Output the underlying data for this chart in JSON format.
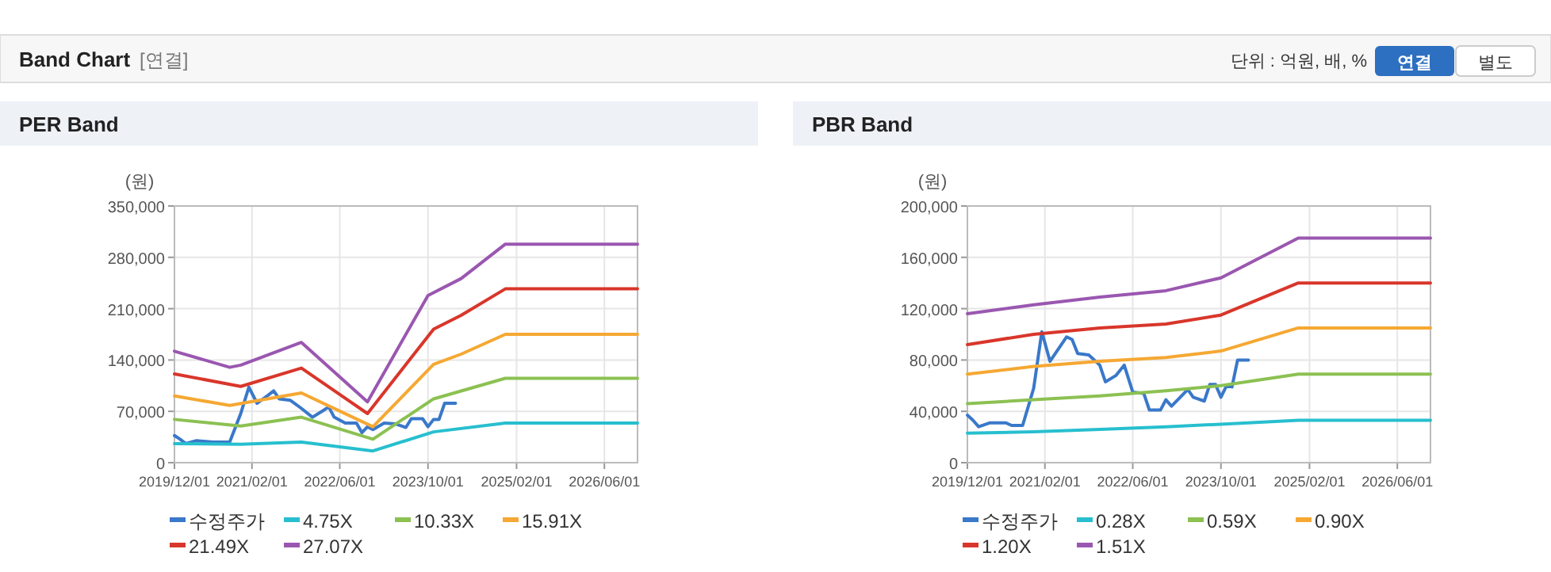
{
  "chart_data": [
    {
      "type": "line",
      "title": "PER Band",
      "ylabel": "(원)",
      "annotations": [
        "Band Chart",
        "[연결]",
        "단위 : 억원, 배, %",
        "연결",
        "별도"
      ],
      "xlim": [
        "2019-12-01",
        "2026-12-01"
      ],
      "xticks": [
        {
          "value": "2019-12-01",
          "label": "2019/12/01"
        },
        {
          "value": "2021-02-01",
          "label": "2021/02/01"
        },
        {
          "value": "2022-06-01",
          "label": "2022/06/01"
        },
        {
          "value": "2023-10-01",
          "label": "2023/10/01"
        },
        {
          "value": "2025-02-01",
          "label": "2025/02/01"
        },
        {
          "value": "2026-06-01",
          "label": "2026/06/01"
        }
      ],
      "ylim": [
        0,
        350000
      ],
      "yticks": [
        0,
        {
          "value": 70000,
          "label": "70,000"
        },
        {
          "value": 140000,
          "label": "140,000"
        },
        {
          "value": 210000,
          "label": "210,000"
        },
        {
          "value": 280000,
          "label": "280,000"
        },
        {
          "value": 350000,
          "label": "350,000"
        }
      ],
      "grid": true,
      "legend": "bottom",
      "series": [
        {
          "name": "수정주가",
          "color": "#3a78c9",
          "x": [
            "2019-12-01",
            "2020-01-01",
            "2020-02-01",
            "2020-04-01",
            "2020-07-01",
            "2020-10-01",
            "2020-12-01",
            "2021-01-15",
            "2021-03-01",
            "2021-05-01",
            "2021-06-01",
            "2021-07-01",
            "2021-09-01",
            "2021-11-01",
            "2022-01-01",
            "2022-03-01",
            "2022-04-01",
            "2022-05-01",
            "2022-07-01",
            "2022-09-01",
            "2022-10-01",
            "2022-11-01",
            "2022-12-01",
            "2023-02-01",
            "2023-04-01",
            "2023-06-01",
            "2023-07-01",
            "2023-09-01",
            "2023-10-01",
            "2023-11-01",
            "2023-12-01",
            "2024-01-01",
            "2024-03-01"
          ],
          "values": [
            37000,
            32000,
            26000,
            30000,
            28000,
            28000,
            67000,
            103000,
            81000,
            92000,
            98000,
            87000,
            85000,
            74000,
            62000,
            71000,
            76000,
            62000,
            54000,
            54000,
            41000,
            49000,
            45000,
            54000,
            53000,
            48000,
            60000,
            60000,
            49000,
            59000,
            59000,
            81000,
            81000
          ]
        },
        {
          "name": "4.75X",
          "color": "#27bfcf",
          "x": [
            "2019-12-01",
            "2020-12-01",
            "2021-11-01",
            "2022-12-01",
            "2023-11-01",
            "2024-12-01",
            "2026-12-01"
          ],
          "values": [
            26000,
            25000,
            28000,
            16000,
            42000,
            54000,
            54000
          ]
        },
        {
          "name": "10.33X",
          "color": "#8cc152",
          "x": [
            "2019-12-01",
            "2020-12-01",
            "2021-11-01",
            "2022-12-01",
            "2023-11-01",
            "2024-12-01",
            "2026-12-01"
          ],
          "values": [
            59000,
            50000,
            62000,
            32000,
            87000,
            115000,
            115000
          ]
        },
        {
          "name": "15.91X",
          "color": "#f5a833",
          "x": [
            "2019-12-01",
            "2020-10-01",
            "2021-11-01",
            "2022-12-01",
            "2023-11-01",
            "2024-04-01",
            "2024-12-01",
            "2026-12-01"
          ],
          "values": [
            91000,
            78000,
            95000,
            49000,
            134000,
            148000,
            175000,
            175000
          ]
        },
        {
          "name": "21.49X",
          "color": "#d9362b",
          "x": [
            "2019-12-01",
            "2020-12-01",
            "2021-11-01",
            "2022-11-01",
            "2023-11-01",
            "2024-04-01",
            "2024-12-01",
            "2026-12-01"
          ],
          "values": [
            121000,
            104000,
            129000,
            67000,
            182000,
            201000,
            237000,
            237000
          ]
        },
        {
          "name": "27.07X",
          "color": "#9a57b0",
          "x": [
            "2019-12-01",
            "2020-10-01",
            "2020-12-01",
            "2021-11-01",
            "2022-11-01",
            "2023-10-01",
            "2024-04-01",
            "2024-12-01",
            "2026-12-01"
          ],
          "values": [
            152000,
            130000,
            133000,
            164000,
            83000,
            228000,
            251000,
            298000,
            298000
          ]
        }
      ]
    },
    {
      "type": "line",
      "title": "PBR Band",
      "ylabel": "(원)",
      "xlim": [
        "2019-12-01",
        "2026-12-01"
      ],
      "xticks": [
        {
          "value": "2019-12-01",
          "label": "2019/12/01"
        },
        {
          "value": "2021-02-01",
          "label": "2021/02/01"
        },
        {
          "value": "2022-06-01",
          "label": "2022/06/01"
        },
        {
          "value": "2023-10-01",
          "label": "2023/10/01"
        },
        {
          "value": "2025-02-01",
          "label": "2025/02/01"
        },
        {
          "value": "2026-06-01",
          "label": "2026/06/01"
        }
      ],
      "ylim": [
        0,
        200000
      ],
      "yticks": [
        0,
        {
          "value": 40000,
          "label": "40,000"
        },
        {
          "value": 80000,
          "label": "80,000"
        },
        {
          "value": 120000,
          "label": "120,000"
        },
        {
          "value": 160000,
          "label": "160,000"
        },
        {
          "value": 200000,
          "label": "200,000"
        }
      ],
      "grid": true,
      "legend": "bottom",
      "series": [
        {
          "name": "수정주가",
          "color": "#3a78c9",
          "x": [
            "2019-12-01",
            "2020-01-01",
            "2020-02-01",
            "2020-04-01",
            "2020-07-01",
            "2020-08-01",
            "2020-10-01",
            "2020-12-01",
            "2021-01-15",
            "2021-03-01",
            "2021-06-01",
            "2021-07-01",
            "2021-08-01",
            "2021-10-01",
            "2021-12-01",
            "2022-01-01",
            "2022-03-01",
            "2022-04-15",
            "2022-06-01",
            "2022-08-01",
            "2022-09-01",
            "2022-11-01",
            "2022-12-01",
            "2023-01-01",
            "2023-04-01",
            "2023-05-01",
            "2023-07-01",
            "2023-08-01",
            "2023-09-01",
            "2023-10-01",
            "2023-11-01",
            "2023-12-01",
            "2024-01-01",
            "2024-03-01"
          ],
          "values": [
            37000,
            33000,
            28000,
            31000,
            31000,
            29000,
            29000,
            58000,
            102000,
            79000,
            98000,
            96000,
            85000,
            84000,
            76000,
            63000,
            68000,
            76000,
            55000,
            54000,
            41000,
            41000,
            49000,
            44000,
            57000,
            51000,
            48000,
            61000,
            61000,
            51000,
            60000,
            59000,
            80000,
            80000
          ]
        },
        {
          "name": "0.28X",
          "color": "#27bfcf",
          "x": [
            "2019-12-01",
            "2020-12-01",
            "2021-12-01",
            "2022-12-01",
            "2023-10-01",
            "2024-12-01",
            "2026-12-01"
          ],
          "values": [
            23000,
            24000,
            26000,
            28000,
            30000,
            33000,
            33000
          ]
        },
        {
          "name": "0.59X",
          "color": "#8cc152",
          "x": [
            "2019-12-01",
            "2020-12-01",
            "2021-12-01",
            "2022-12-01",
            "2023-10-01",
            "2024-12-01",
            "2026-12-01"
          ],
          "values": [
            46000,
            49000,
            52000,
            56000,
            60000,
            69000,
            69000
          ]
        },
        {
          "name": "0.90X",
          "color": "#f5a833",
          "x": [
            "2019-12-01",
            "2020-12-01",
            "2021-12-01",
            "2022-12-01",
            "2023-10-01",
            "2024-12-01",
            "2026-12-01"
          ],
          "values": [
            69000,
            75000,
            79000,
            82000,
            87000,
            105000,
            105000
          ]
        },
        {
          "name": "1.20X",
          "color": "#d9362b",
          "x": [
            "2019-12-01",
            "2020-12-01",
            "2021-12-01",
            "2022-12-01",
            "2023-10-01",
            "2024-12-01",
            "2026-12-01"
          ],
          "values": [
            92000,
            100000,
            105000,
            108000,
            115000,
            140000,
            140000
          ]
        },
        {
          "name": "1.51X",
          "color": "#9a57b0",
          "x": [
            "2019-12-01",
            "2020-12-01",
            "2021-12-01",
            "2022-12-01",
            "2023-10-01",
            "2024-12-01",
            "2026-12-01"
          ],
          "values": [
            116000,
            123000,
            129000,
            134000,
            144000,
            175000,
            175000
          ]
        }
      ]
    }
  ]
}
